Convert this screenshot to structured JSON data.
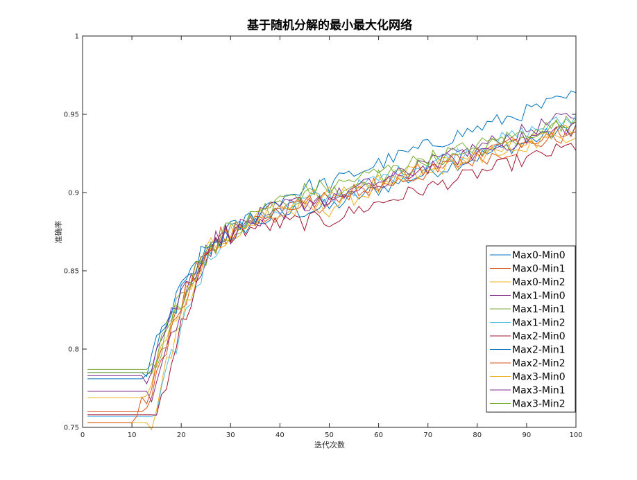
{
  "chart_data": {
    "type": "line",
    "title": "基于随机分解的最小最大化网络",
    "xlabel": "迭代次数",
    "ylabel": "准确率",
    "xlim": [
      0,
      100
    ],
    "ylim": [
      0.75,
      1
    ],
    "xticks": [
      0,
      10,
      20,
      30,
      40,
      50,
      60,
      70,
      80,
      90,
      100
    ],
    "yticks": [
      0.75,
      0.8,
      0.85,
      0.9,
      0.95,
      1
    ],
    "ytick_labels": [
      "0.75",
      "0.8",
      "0.85",
      "0.9",
      "0.95",
      "1"
    ],
    "grid": false,
    "legend_position": "bottom-right",
    "series": [
      {
        "name": "Max0-Min0",
        "color": "#0072BD",
        "start": 0.781,
        "rise": 13,
        "mid": 0.89,
        "end": 0.942
      },
      {
        "name": "Max0-Min1",
        "color": "#D95319",
        "start": 0.76,
        "rise": 13,
        "mid": 0.893,
        "end": 0.938
      },
      {
        "name": "Max0-Min2",
        "color": "#EDB120",
        "start": 0.753,
        "rise": 14,
        "mid": 0.89,
        "end": 0.942
      },
      {
        "name": "Max1-Min0",
        "color": "#7E2F8E",
        "start": 0.773,
        "rise": 14,
        "mid": 0.893,
        "end": 0.95
      },
      {
        "name": "Max1-Min1",
        "color": "#77AC30",
        "start": 0.787,
        "rise": 14,
        "mid": 0.9,
        "end": 0.944
      },
      {
        "name": "Max1-Min2",
        "color": "#4DBEEE",
        "start": 0.757,
        "rise": 15,
        "mid": 0.896,
        "end": 0.948
      },
      {
        "name": "Max2-Min0",
        "color": "#A2142F",
        "start": 0.758,
        "rise": 15,
        "mid": 0.882,
        "end": 0.93
      },
      {
        "name": "Max2-Min1",
        "color": "#0072BD",
        "start": 0.785,
        "rise": 13,
        "mid": 0.905,
        "end": 0.962
      },
      {
        "name": "Max2-Min2",
        "color": "#D95319",
        "start": 0.753,
        "rise": 11,
        "mid": 0.895,
        "end": 0.943
      },
      {
        "name": "Max3-Min0",
        "color": "#EDB120",
        "start": 0.769,
        "rise": 13,
        "mid": 0.898,
        "end": 0.938
      },
      {
        "name": "Max3-Min1",
        "color": "#7E2F8E",
        "start": 0.783,
        "rise": 13,
        "mid": 0.896,
        "end": 0.943
      },
      {
        "name": "Max3-Min2",
        "color": "#77AC30",
        "start": 0.785,
        "rise": 14,
        "mid": 0.903,
        "end": 0.946
      }
    ]
  }
}
